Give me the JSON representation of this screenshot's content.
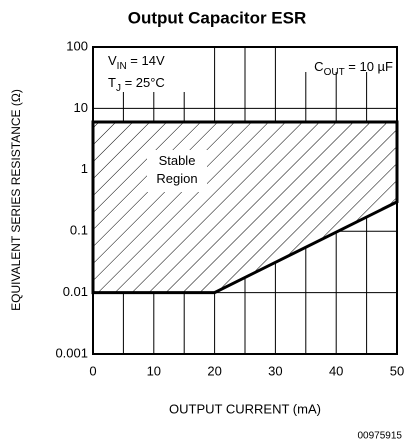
{
  "chart_data": {
    "type": "area",
    "title": "Output Capacitor ESR",
    "xlabel": "OUTPUT CURRENT (mA)",
    "ylabel": "EQUIVALENT SERIES RESISTANCE (Ω)",
    "xlim": [
      0,
      50
    ],
    "xticks": [
      0,
      10,
      20,
      30,
      40,
      50
    ],
    "xgrid": [
      0,
      5,
      10,
      15,
      20,
      25,
      30,
      35,
      40,
      45,
      50
    ],
    "ylim": [
      0.001,
      100
    ],
    "yticks": [
      0.001,
      0.01,
      0.1,
      1,
      10,
      100
    ],
    "ylog": true,
    "grid": true,
    "series": [
      {
        "name": "Stable Region",
        "color": "#000000",
        "x": [
          0,
          50,
          50,
          20,
          0
        ],
        "values": [
          6,
          6,
          0.3,
          0.01,
          0.01
        ]
      }
    ],
    "annotations": [
      {
        "main": "V",
        "sub": "IN",
        "rest": " = 14V"
      },
      {
        "main": "T",
        "sub": "J",
        "rest": " = 25°C"
      },
      {
        "main": "C",
        "sub": "OUT",
        "rest": " = 10 µF"
      }
    ],
    "footnote": "00975915"
  }
}
